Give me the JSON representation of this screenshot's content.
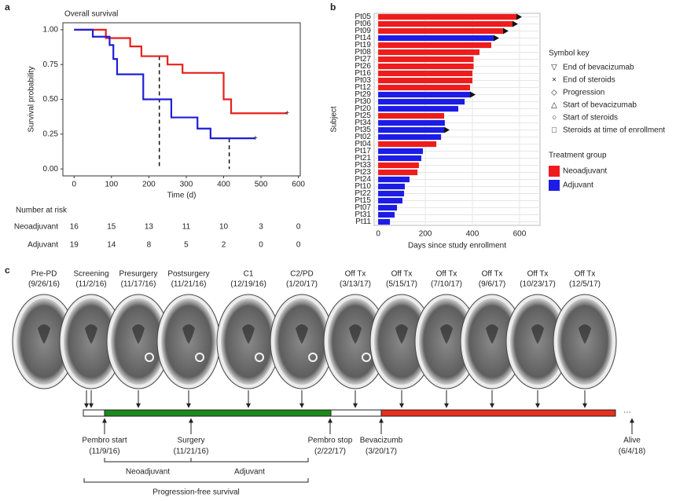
{
  "panel_labels": [
    "a",
    "b",
    "c"
  ],
  "chart_data": [
    {
      "type": "line",
      "step": true,
      "title": "Overall survival",
      "x_label": "Time (d)",
      "y_label": "Survival probability",
      "xlim": [
        -30,
        605
      ],
      "ylim": [
        -0.05,
        1.05
      ],
      "xticks": [
        0,
        100,
        200,
        300,
        400,
        500,
        600
      ],
      "yticks": [
        {
          "value": 0,
          "label": "0.00"
        },
        {
          "value": 0.25,
          "label": "0.25"
        },
        {
          "value": 0.5,
          "label": "0.50"
        },
        {
          "value": 0.75,
          "label": "0.75"
        },
        {
          "value": 1,
          "label": "1.00"
        }
      ],
      "series": [
        {
          "name": "Neoadjuvant",
          "color": "#e8201c",
          "x": [
            0,
            85,
            150,
            180,
            250,
            290,
            400,
            420,
            570
          ],
          "values": [
            1,
            0.94,
            0.88,
            0.81,
            0.75,
            0.69,
            0.5,
            0.4,
            0.4
          ]
        },
        {
          "name": "Adjuvant",
          "color": "#1f1fd6",
          "x": [
            0,
            50,
            95,
            105,
            115,
            185,
            260,
            330,
            365,
            485
          ],
          "values": [
            1,
            0.95,
            0.89,
            0.79,
            0.68,
            0.5,
            0.37,
            0.29,
            0.22,
            0.22
          ]
        }
      ],
      "median_x": [
        228,
        415
      ],
      "risk_table": {
        "title": "Number at risk",
        "rows": [
          {
            "name": "Neoadjuvant",
            "values": [
              16,
              15,
              13,
              11,
              10,
              3,
              0
            ]
          },
          {
            "name": "Adjuvant",
            "values": [
              19,
              14,
              8,
              5,
              2,
              0,
              0
            ]
          }
        ]
      }
    },
    {
      "type": "bar",
      "orientation": "horizontal",
      "x_label": "Days since study enrollment",
      "y_label": "Subject",
      "xlim": [
        -17,
        687
      ],
      "xticks": [
        0,
        200,
        400,
        600
      ],
      "grid": true,
      "categories": [
        "Pt05",
        "Pt06",
        "Pt09",
        "Pt14",
        "Pt19",
        "Pt08",
        "Pt27",
        "Pt26",
        "Pt16",
        "Pt03",
        "Pt12",
        "Pt29",
        "Pt30",
        "Pt20",
        "Pt25",
        "Pt34",
        "Pt35",
        "Pt02",
        "Pt04",
        "Pt17",
        "Pt21",
        "Pt33",
        "Pt23",
        "Pt24",
        "Pt10",
        "Pt22",
        "Pt15",
        "Pt07",
        "Pt31",
        "Pt11"
      ],
      "series": [
        {
          "name": "Neoadjuvant",
          "color": "#ee1c1c",
          "values": [
            587,
            570,
            530,
            null,
            480,
            430,
            405,
            405,
            400,
            400,
            390,
            null,
            null,
            null,
            280,
            null,
            null,
            null,
            247,
            null,
            null,
            173,
            167,
            null,
            null,
            null,
            null,
            null,
            null,
            null
          ]
        },
        {
          "name": "Adjuvant",
          "color": "#1c1ce6",
          "values": [
            null,
            null,
            null,
            490,
            null,
            null,
            null,
            null,
            null,
            null,
            null,
            390,
            367,
            340,
            null,
            283,
            280,
            267,
            null,
            190,
            183,
            null,
            null,
            133,
            113,
            110,
            103,
            80,
            70,
            50
          ]
        }
      ],
      "ongoing": [
        true,
        true,
        true,
        true,
        false,
        false,
        false,
        false,
        false,
        false,
        false,
        true,
        false,
        false,
        false,
        false,
        true,
        false,
        false,
        false,
        false,
        false,
        false,
        false,
        false,
        false,
        false,
        false,
        false,
        false
      ],
      "symbol_key": {
        "title": "Symbol key",
        "items": [
          "End of bevacizumab",
          "End of steroids",
          "Progression",
          "Start of bevacizumab",
          "Start of steroids",
          "Steroids at time of enrollment"
        ]
      },
      "legend_title": "Treatment group"
    }
  ],
  "timeline": {
    "scans": [
      {
        "label": "Pre-PD",
        "date": "(9/26/16)"
      },
      {
        "label": "Screening",
        "date": "(11/2/16)"
      },
      {
        "label": "Presurgery",
        "date": "(11/17/16)"
      },
      {
        "label": "Postsurgery",
        "date": "(11/21/16)"
      },
      {
        "label": "C1",
        "date": "(12/19/16)"
      },
      {
        "label": "C2/PD",
        "date": "(1/20/17)"
      },
      {
        "label": "Off Tx",
        "date": "(3/13/17)"
      },
      {
        "label": "Off Tx",
        "date": "(5/15/17)"
      },
      {
        "label": "Off Tx",
        "date": "(7/10/17)"
      },
      {
        "label": "Off Tx",
        "date": "(9/6/17)"
      },
      {
        "label": "Off Tx",
        "date": "(10/23/17)"
      },
      {
        "label": "Off Tx",
        "date": "(12/5/17)"
      }
    ],
    "events": [
      {
        "label": "Pembro start",
        "date": "(11/9/16)"
      },
      {
        "label": "Surgery",
        "date": "(11/21/16)"
      },
      {
        "label": "Pembro stop",
        "date": "(2/22/17)"
      },
      {
        "label": "Bevacizumb",
        "date": "(3/20/17)"
      },
      {
        "label": "Alive",
        "date": "(6/4/18)"
      }
    ],
    "phases": [
      "Neoadjuvant",
      "Adjuvant",
      "Progression-free survival"
    ],
    "continues": "···"
  }
}
